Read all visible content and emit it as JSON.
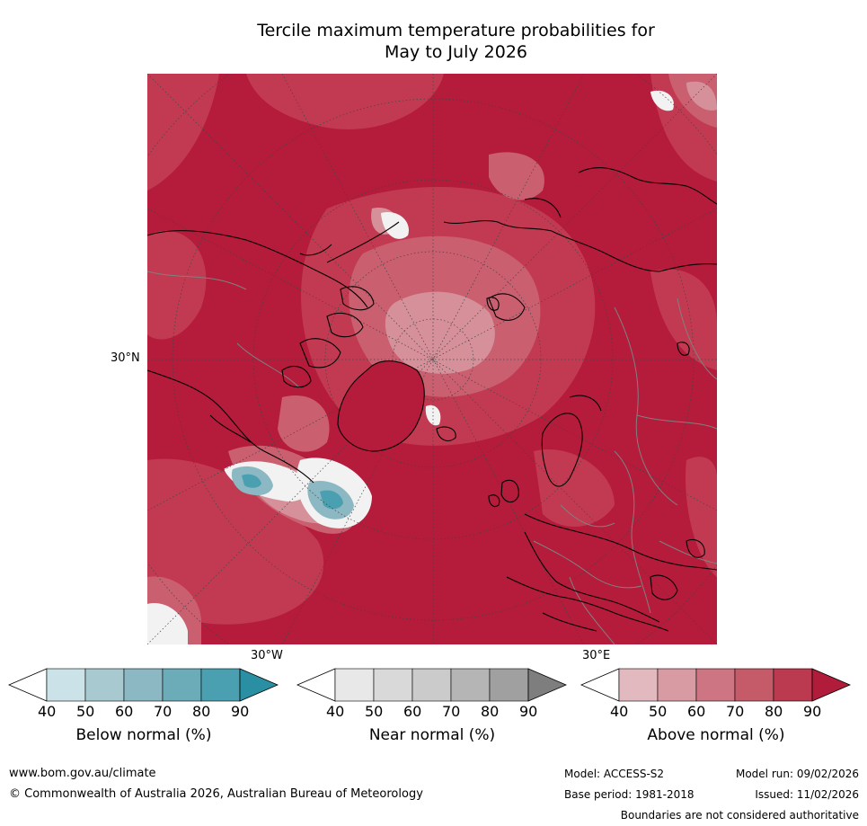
{
  "title": {
    "line1": "Tercile maximum temperature probabilities for",
    "line2": "May to July 2026"
  },
  "map": {
    "labels": {
      "lat_30n": "30°N",
      "lon_30w": "30°W",
      "lon_30e": "30°E"
    },
    "colors": {
      "background": "#b51b3b",
      "above_80": "#c23a51",
      "above_70": "#ca5f70",
      "above_60": "#d6909a",
      "near_normal": "#f2f2f2",
      "below_80": "#3e9eb0",
      "coastline": "#000000",
      "borders": "#808080",
      "graticule": "#444444"
    }
  },
  "colorbars": [
    {
      "label": "Below normal (%)",
      "ticks": [
        "40",
        "50",
        "60",
        "70",
        "80",
        "90"
      ],
      "colors": [
        "#ffffff",
        "#cbe3e8",
        "#a8c9cf",
        "#8bb8c3",
        "#6cabb8",
        "#4aa0b0",
        "#2b8fa3"
      ]
    },
    {
      "label": "Near normal (%)",
      "ticks": [
        "40",
        "50",
        "60",
        "70",
        "80",
        "90"
      ],
      "colors": [
        "#ffffff",
        "#e8e8e8",
        "#d9d9d9",
        "#cbcbcb",
        "#b5b5b5",
        "#a0a0a0",
        "#7e7e7e"
      ]
    },
    {
      "label": "Above normal (%)",
      "ticks": [
        "40",
        "50",
        "60",
        "70",
        "80",
        "90"
      ],
      "colors": [
        "#ffffff",
        "#e2b9bf",
        "#d89aa3",
        "#cd7582",
        "#c55a69",
        "#bb3a50",
        "#b01c3a"
      ]
    }
  ],
  "footer": {
    "website": "www.bom.gov.au/climate",
    "copyright": "© Commonwealth of Australia 2026, Australian Bureau of Meteorology",
    "model": "Model: ACCESS-S2",
    "model_run": "Model run: 09/02/2026",
    "base_period": "Base period: 1981-2018",
    "issued": "Issued: 11/02/2026",
    "disclaimer": "Boundaries are not considered authoritative"
  }
}
